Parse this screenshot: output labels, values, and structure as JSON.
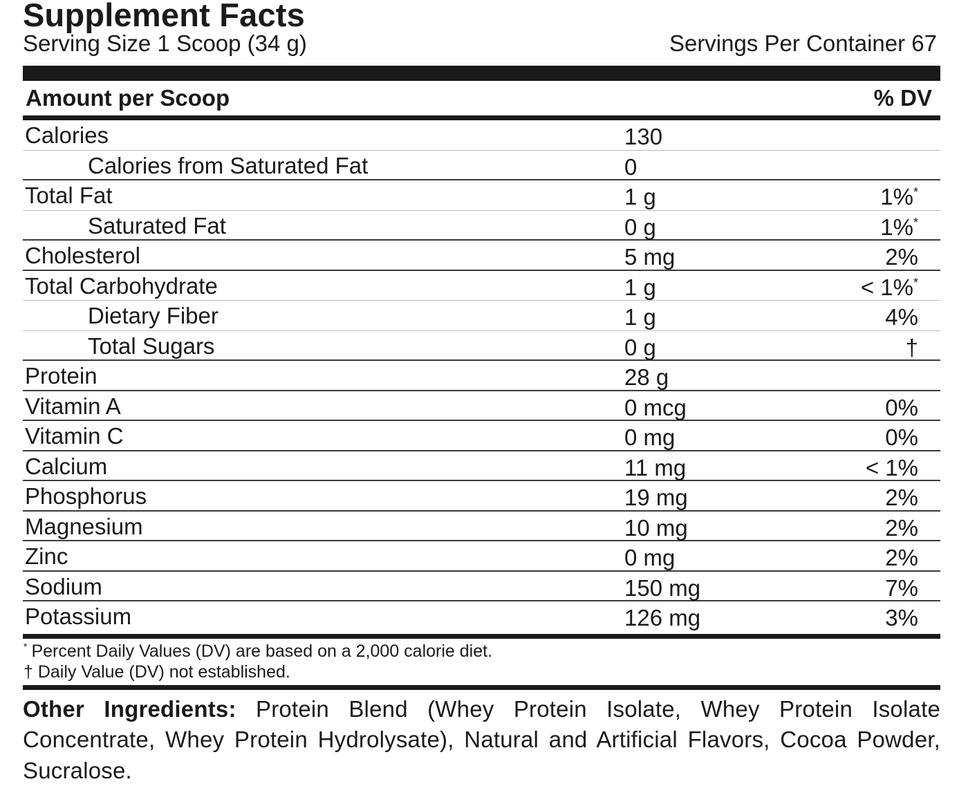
{
  "panel": {
    "title": "Supplement Facts",
    "serving_size": "Serving Size 1 Scoop (34 g)",
    "servings_per_container": "Servings Per Container 67",
    "header": {
      "amount_label": "Amount per Scoop",
      "dv_label": "% DV"
    },
    "rows": [
      {
        "name": "Calories",
        "amount": "130",
        "dv": "",
        "dv_mark": ""
      },
      {
        "name": "Calories from Saturated Fat",
        "amount": "0",
        "dv": "",
        "dv_mark": ""
      },
      {
        "name": "Total Fat",
        "amount": "1 g",
        "dv": "1%",
        "dv_mark": "*"
      },
      {
        "name": "Saturated Fat",
        "amount": "0 g",
        "dv": "1%",
        "dv_mark": "*"
      },
      {
        "name": "Cholesterol",
        "amount": "5 mg",
        "dv": "2%",
        "dv_mark": ""
      },
      {
        "name": "Total Carbohydrate",
        "amount": "1 g",
        "dv": "< 1%",
        "dv_mark": "*"
      },
      {
        "name": "Dietary Fiber",
        "amount": "1 g",
        "dv": "4%",
        "dv_mark": ""
      },
      {
        "name": "Total Sugars",
        "amount": "0 g",
        "dv": "†",
        "dv_mark": ""
      },
      {
        "name": "Protein",
        "amount": "28 g",
        "dv": "",
        "dv_mark": ""
      },
      {
        "name": "Vitamin A",
        "amount": "0 mcg",
        "dv": "0%",
        "dv_mark": ""
      },
      {
        "name": "Vitamin C",
        "amount": "0 mg",
        "dv": "0%",
        "dv_mark": ""
      },
      {
        "name": "Calcium",
        "amount": "11 mg",
        "dv": "< 1%",
        "dv_mark": ""
      },
      {
        "name": "Phosphorus",
        "amount": "19 mg",
        "dv": "2%",
        "dv_mark": ""
      },
      {
        "name": "Magnesium",
        "amount": "10 mg",
        "dv": "2%",
        "dv_mark": ""
      },
      {
        "name": "Zinc",
        "amount": "0 mg",
        "dv": "2%",
        "dv_mark": ""
      },
      {
        "name": "Sodium",
        "amount": "150 mg",
        "dv": "7%",
        "dv_mark": ""
      },
      {
        "name": "Potassium",
        "amount": "126 mg",
        "dv": "3%",
        "dv_mark": ""
      }
    ],
    "footnotes": {
      "star_mark": "*",
      "percent_note": "Percent Daily Values (DV) are based on a 2,000 calorie diet.",
      "dagger_note": "† Daily Value (DV) not established."
    },
    "ingredients": {
      "label": "Other Ingredients:",
      "text": "Protein Blend (Whey Protein Isolate, Whey Protein Isolate Concentrate, Whey Protein Hydrolysate), Natural and Artificial Flavors, Cocoa Powder, Sucralose."
    }
  }
}
